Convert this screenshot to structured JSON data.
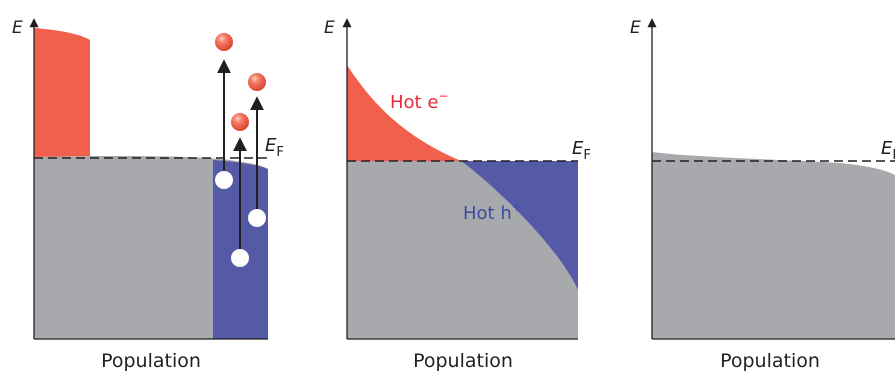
{
  "colors": {
    "electron": "#f0604d",
    "hole": "#545aa5",
    "equilibrium": "#a7a9ac",
    "axis": "#231f20",
    "hot_e_text": "#e8283c",
    "hot_h_text": "#3c4aa0"
  },
  "panels": [
    {
      "y_axis_label": "E",
      "x_axis_label": "Population",
      "fermi_label": {
        "main": "E",
        "sub": "F"
      }
    },
    {
      "y_axis_label": "E",
      "x_axis_label": "Population",
      "fermi_label": {
        "main": "E",
        "sub": "F"
      },
      "hot_electron_label": {
        "base": "Hot e",
        "sup": "−"
      },
      "hot_hole_label": {
        "base": "Hot h",
        "sup": "+"
      }
    },
    {
      "y_axis_label": "E",
      "x_axis_label": "Population",
      "fermi_label": {
        "main": "E",
        "sub": "F"
      }
    }
  ]
}
